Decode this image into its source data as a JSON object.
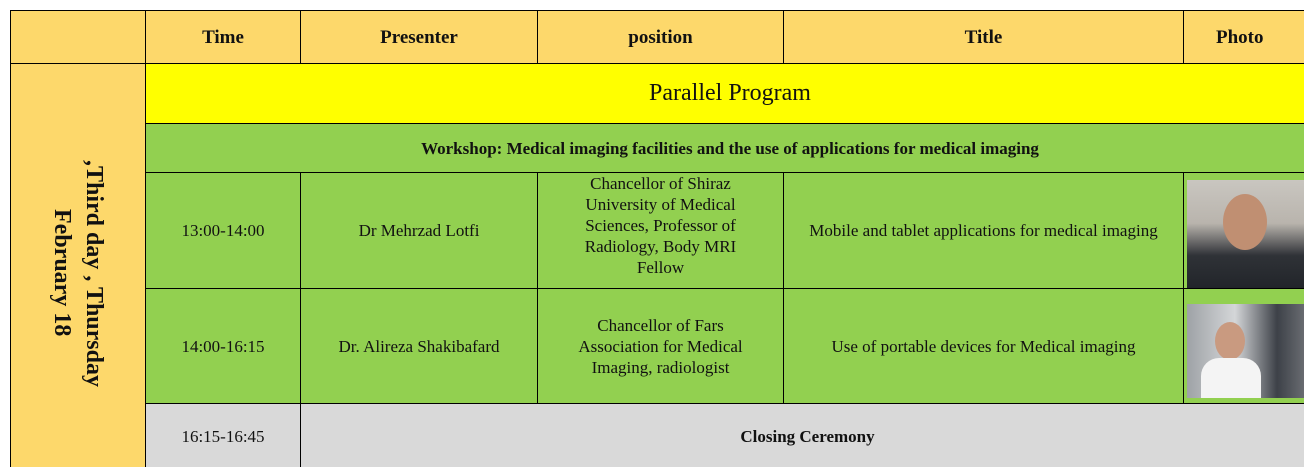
{
  "header": {
    "columns": [
      "Time",
      "Presenter",
      "position",
      "Title",
      "Photo"
    ]
  },
  "day_label": [
    ",Third day , Thursday",
    "February 18"
  ],
  "program": {
    "title": "Parallel Program"
  },
  "workshop": {
    "title": "Workshop: Medical imaging facilities and the use of applications for medical imaging"
  },
  "rows": [
    {
      "time": "13:00-14:00",
      "presenter": "Dr Mehrzad Lotfi",
      "position": "Chancellor of Shiraz University of Medical Sciences, Professor of Radiology, Body MRI Fellow",
      "title": "Mobile and tablet applications for medical imaging"
    },
    {
      "time": "14:00-16:15",
      "presenter": "Dr. Alireza Shakibafard",
      "position": "Chancellor of Fars Association for Medical Imaging, radiologist",
      "title": "Use of portable devices for Medical imaging"
    }
  ],
  "closing": {
    "time": "16:15-16:45",
    "title": "Closing Ceremony"
  }
}
